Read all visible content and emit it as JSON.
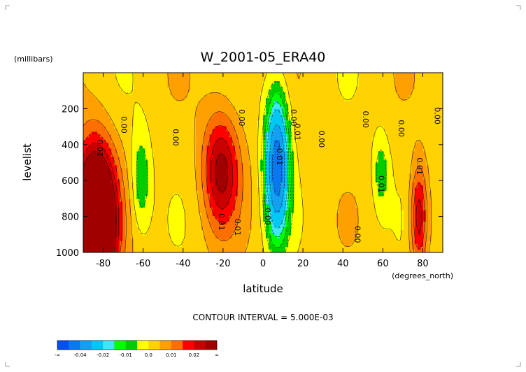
{
  "chart_data": {
    "type": "heatmap",
    "subtype": "filled-contour",
    "title": "W_2001-05_ERA40",
    "xlabel": "latitude",
    "ylabel": "levelist",
    "x_units": "(degrees_north)",
    "y_units": "(millibars)",
    "xlim": [
      -90,
      90
    ],
    "ylim": [
      1000,
      0
    ],
    "y_inverted": true,
    "xticks": [
      "-80",
      "-60",
      "-40",
      "-20",
      "0",
      "20",
      "40",
      "60",
      "80"
    ],
    "xtick_values": [
      -80,
      -60,
      -40,
      -20,
      0,
      20,
      40,
      60,
      80
    ],
    "yticks": [
      "200",
      "400",
      "600",
      "800",
      "1000"
    ],
    "ytick_values": [
      200,
      400,
      600,
      800,
      1000
    ],
    "grid": false,
    "contour_interval_text": "CONTOUR INTERVAL = 5.000E-03",
    "contour_labels": [
      {
        "text": "0.00",
        "lat": -71,
        "lev": 290
      },
      {
        "text": "0.01",
        "lat": -83,
        "lev": 420
      },
      {
        "text": "0.00",
        "lat": -45,
        "lev": 360
      },
      {
        "text": "0.00",
        "lat": -12,
        "lev": 250
      },
      {
        "text": "0.01",
        "lat": -22,
        "lev": 830
      },
      {
        "text": "0.01",
        "lat": -14,
        "lev": 860
      },
      {
        "text": "0.00",
        "lat": 1,
        "lev": 800
      },
      {
        "text": "-0.01",
        "lat": 7,
        "lev": 460
      },
      {
        "text": "0.00",
        "lat": 14,
        "lev": 250
      },
      {
        "text": "0.01",
        "lat": 16,
        "lev": 330
      },
      {
        "text": "0.00",
        "lat": 28,
        "lev": 370
      },
      {
        "text": "0.00",
        "lat": 46,
        "lev": 900
      },
      {
        "text": "0.00",
        "lat": 50,
        "lev": 260
      },
      {
        "text": "0.00",
        "lat": 68,
        "lev": 310
      },
      {
        "text": "0.01",
        "lat": 58,
        "lev": 620
      },
      {
        "text": "0.01",
        "lat": 77,
        "lev": 520
      },
      {
        "text": "0.00",
        "lat": 86,
        "lev": 240
      }
    ],
    "field_features": [
      {
        "kind": "positive-max",
        "lat": -84,
        "lev": 830,
        "value": 0.06,
        "spread_lat": 7,
        "spread_lev": 280
      },
      {
        "kind": "positive-max",
        "lat": -21,
        "lev": 540,
        "value": 0.024,
        "spread_lat": 6.5,
        "spread_lev": 230
      },
      {
        "kind": "negative-min",
        "lat": 7,
        "lev": 520,
        "value": -0.05,
        "spread_lat": 4,
        "spread_lev": 260
      },
      {
        "kind": "negative-min",
        "lat": -61,
        "lev": 600,
        "value": -0.012,
        "spread_lat": 3.5,
        "spread_lev": 200
      },
      {
        "kind": "negative-min",
        "lat": 59,
        "lev": 550,
        "value": -0.01,
        "spread_lat": 3,
        "spread_lev": 160
      },
      {
        "kind": "positive-max",
        "lat": 78,
        "lev": 800,
        "value": 0.022,
        "spread_lat": 3,
        "spread_lev": 200
      }
    ],
    "colorbar": {
      "levels": [
        -0.05,
        -0.04,
        -0.03,
        -0.02,
        -0.015,
        -0.01,
        -0.005,
        0.0,
        0.005,
        0.01,
        0.015,
        0.02,
        0.025
      ],
      "colors": [
        "#0050f0",
        "#0a78f0",
        "#14a0f0",
        "#00c8f5",
        "#3ce6f5",
        "#00ff00",
        "#00cc00",
        "#ffff00",
        "#ffd200",
        "#ffa000",
        "#ff6e00",
        "#ff0000",
        "#c80000",
        "#a00000"
      ],
      "tick_labels": [
        "-∞",
        "-0.04",
        "-0.02",
        "-0.01",
        "0.0",
        "0.01",
        "0.02",
        "∞"
      ]
    }
  }
}
